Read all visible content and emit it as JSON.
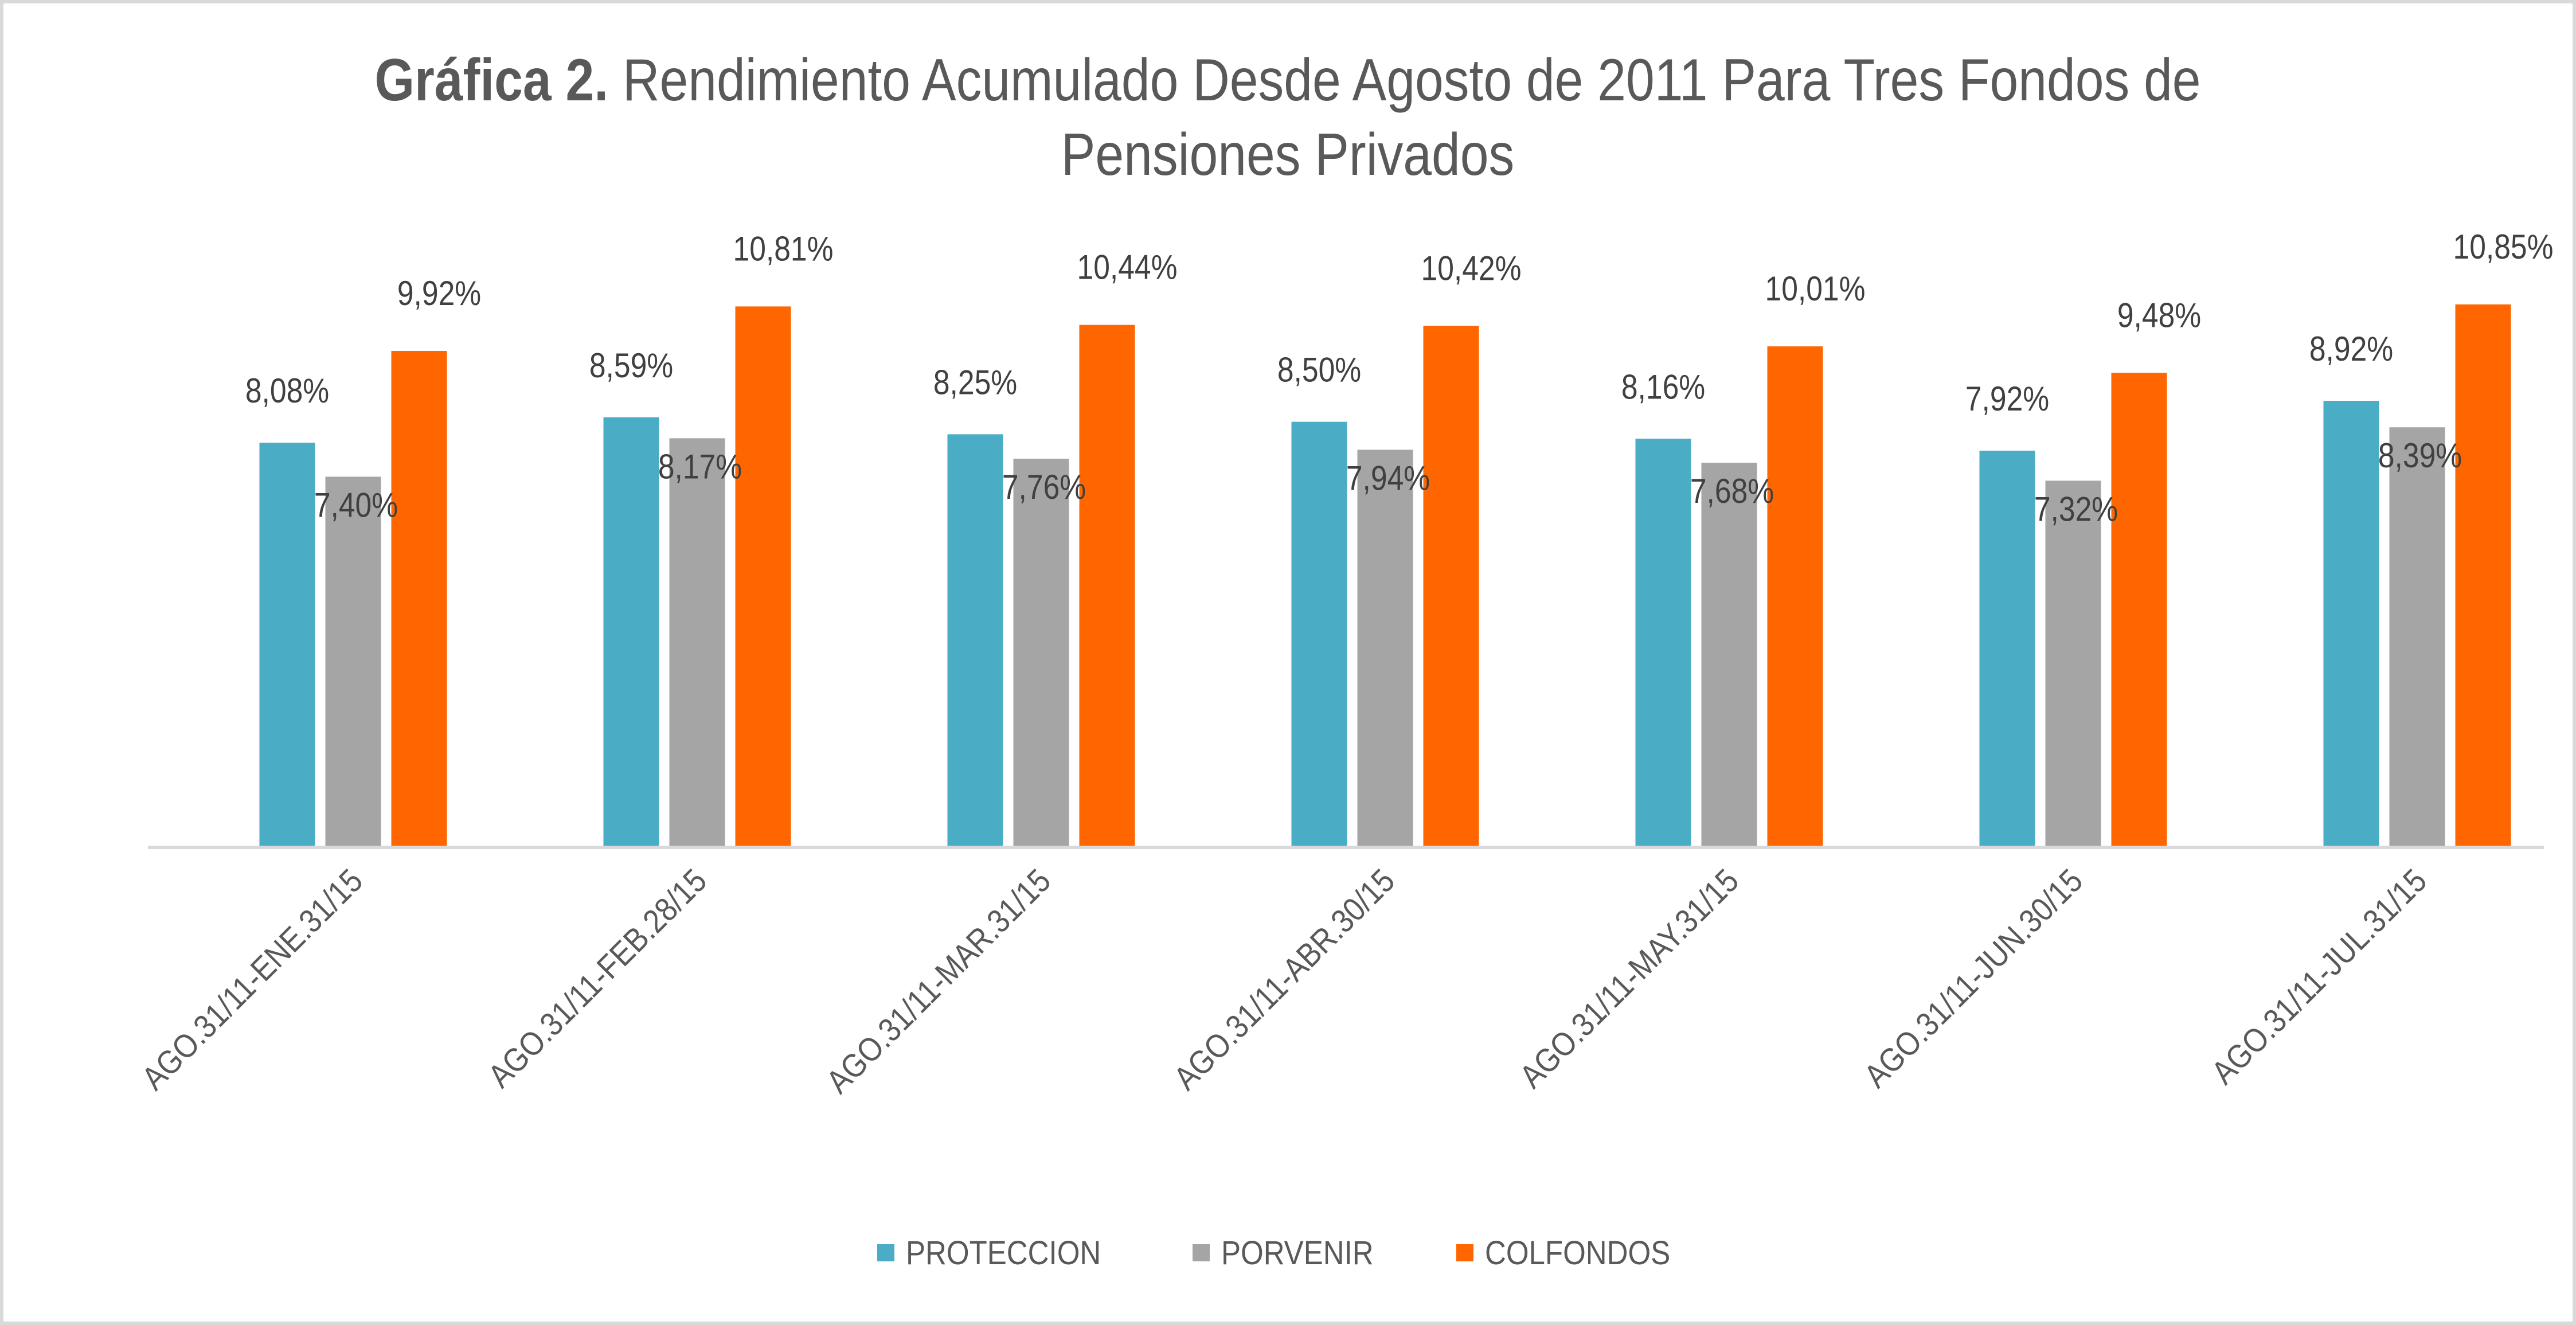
{
  "chart_data": {
    "type": "bar",
    "title_bold": "Gráfica 2.",
    "title_rest_line1": " Rendimiento Acumulado Desde Agosto de 2011 Para Tres Fondos de",
    "title_line2": "Pensiones Privados",
    "xlabel": "",
    "ylabel": "",
    "ylim": [
      0,
      12.6
    ],
    "grid": false,
    "legend_position": "bottom",
    "categories": [
      "AGO.31/11-ENE.31/15",
      "AGO.31/11-FEB.28/15",
      "AGO.31/11-MAR.31/15",
      "AGO.31/11-ABR.30/15",
      "AGO.31/11-MAY.31/15",
      "AGO.31/11-JUN.30/15",
      "AGO.31/11-JUL.31/15"
    ],
    "series": [
      {
        "name": "PROTECCION",
        "color": "#4BACC6",
        "values": [
          8.08,
          8.59,
          8.25,
          8.5,
          8.16,
          7.92,
          8.92
        ],
        "labels": [
          "8,08%",
          "8,59%",
          "8,25%",
          "8,50%",
          "8,16%",
          "7,92%",
          "8,92%"
        ]
      },
      {
        "name": "PORVENIR",
        "color": "#A5A5A5",
        "values": [
          7.4,
          8.17,
          7.76,
          7.94,
          7.68,
          7.32,
          8.39
        ],
        "labels": [
          "7,40%",
          "8,17%",
          "7,76%",
          "7,94%",
          "7,68%",
          "7,32%",
          "8,39%"
        ]
      },
      {
        "name": "COLFONDOS",
        "color": "#FF6600",
        "values": [
          9.92,
          10.81,
          10.44,
          10.42,
          10.01,
          9.48,
          10.85
        ],
        "labels": [
          "9,92%",
          "10,81%",
          "10,44%",
          "10,42%",
          "10,01%",
          "9,48%",
          "10,85%"
        ]
      }
    ]
  }
}
